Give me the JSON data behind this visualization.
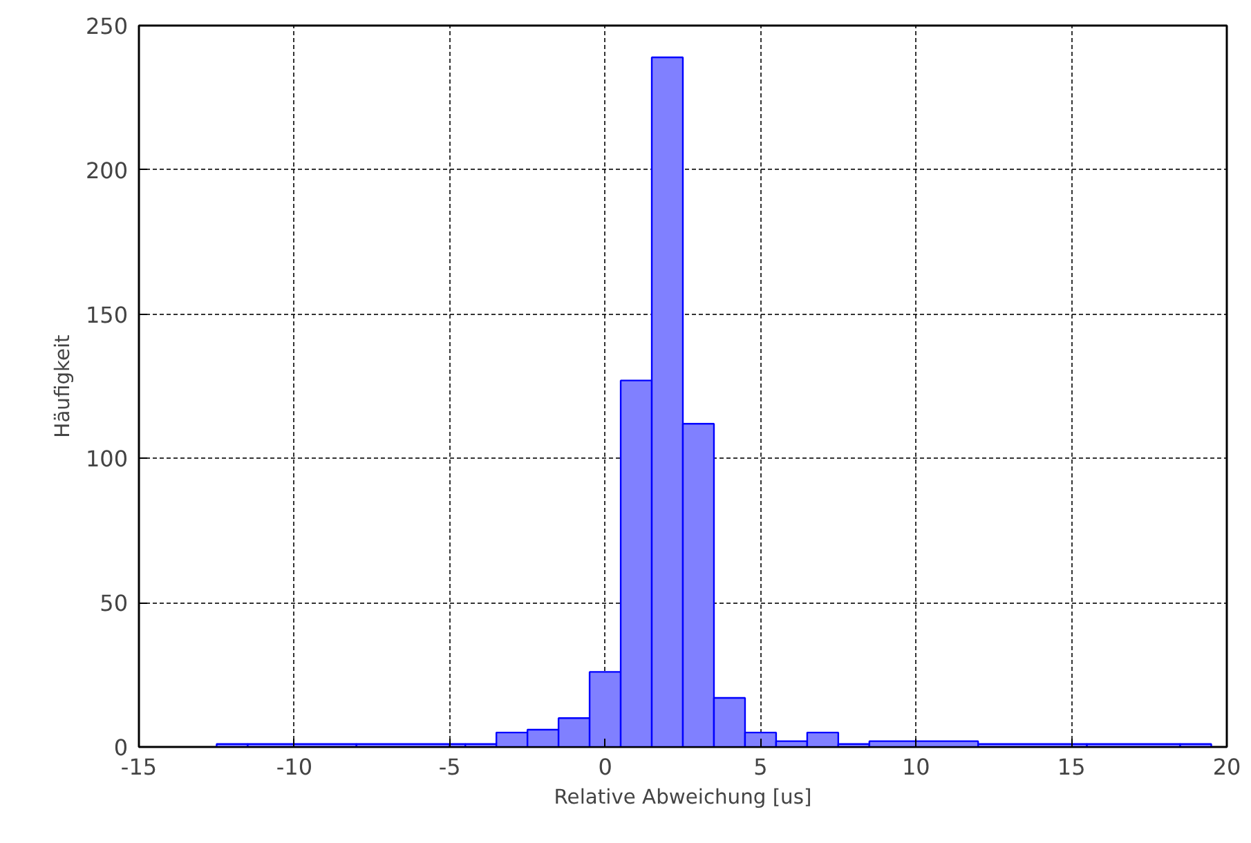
{
  "chart_data": {
    "type": "histogram",
    "xlabel": "Relative Abweichung [us]",
    "ylabel": "Häufigkeit",
    "bins": [
      -12.5,
      -11.5,
      -8,
      -5,
      -4.5,
      -3.5,
      -2.5,
      -1.5,
      -0.5,
      0.5,
      1.5,
      2.5,
      3.5,
      4.5,
      5.5,
      6.5,
      7.5,
      8.5,
      12,
      15.5,
      18.5,
      19.5
    ],
    "values": [
      1,
      1,
      1,
      1,
      1,
      5,
      6,
      10,
      26,
      127,
      239,
      112,
      17,
      5,
      2,
      5,
      1,
      2,
      1,
      1,
      1
    ],
    "color": "#8080ff",
    "xlim": [
      -15,
      20
    ],
    "xticks": [
      -15,
      -10,
      -5,
      0,
      5,
      10,
      15,
      20
    ],
    "ylim": [
      0,
      250
    ],
    "yticks": [
      0,
      50,
      100,
      150,
      200,
      250
    ],
    "grid": true
  }
}
